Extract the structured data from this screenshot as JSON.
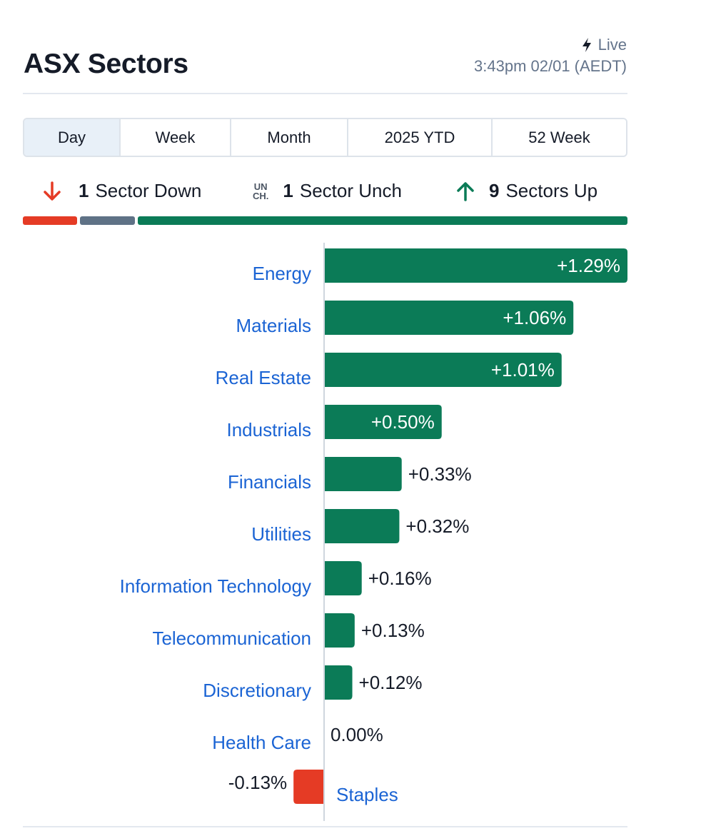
{
  "header": {
    "title": "ASX Sectors",
    "live_label": "Live",
    "timestamp": "3:43pm 02/01 (AEDT)"
  },
  "tabs": [
    {
      "label": "Day",
      "active": true
    },
    {
      "label": "Week",
      "active": false
    },
    {
      "label": "Month",
      "active": false
    },
    {
      "label": "2025 YTD",
      "active": false
    },
    {
      "label": "52 Week",
      "active": false
    }
  ],
  "summary": {
    "down_count": "1",
    "down_label": "Sector Down",
    "unch_icon_top": "UN",
    "unch_icon_bottom": "CH.",
    "unch_count": "1",
    "unch_label": "Sector Unch",
    "up_count": "9",
    "up_label": "Sectors Up"
  },
  "colors": {
    "up": "#0b7b57",
    "down": "#e53b25",
    "unch": "#5f7286",
    "link": "#1b64d4"
  },
  "chart_data": {
    "type": "bar",
    "orientation": "horizontal",
    "categories": [
      "Energy",
      "Materials",
      "Real Estate",
      "Industrials",
      "Financials",
      "Utilities",
      "Information Technology",
      "Telecommunication",
      "Discretionary",
      "Health Care",
      "Staples"
    ],
    "values": [
      1.29,
      1.06,
      1.01,
      0.5,
      0.33,
      0.32,
      0.16,
      0.13,
      0.12,
      0.0,
      -0.13
    ],
    "value_labels": [
      "+1.29%",
      "+1.06%",
      "+1.01%",
      "+0.50%",
      "+0.33%",
      "+0.32%",
      "+0.16%",
      "+0.13%",
      "+0.12%",
      "0.00%",
      "-0.13%"
    ],
    "unit": "%"
  }
}
